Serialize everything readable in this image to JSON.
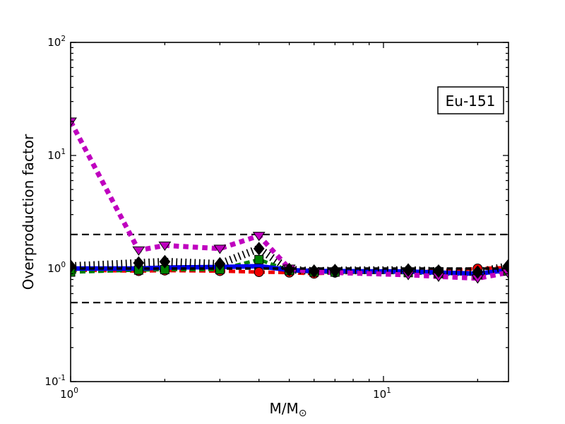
{
  "chart_data": {
    "type": "line",
    "title": "",
    "annotation": "Eu-151",
    "xlabel_base": "M/M",
    "xlabel_sub": "⊙",
    "ylabel": "Overproduction factor",
    "xscale": "log",
    "yscale": "log",
    "xlim": [
      1,
      25.1
    ],
    "ylim": [
      0.1,
      100
    ],
    "grid": false,
    "legend": "none",
    "x_ticks": [
      {
        "value": 1,
        "mantissa": "10",
        "exp": "0"
      },
      {
        "value": 10,
        "mantissa": "10",
        "exp": "1"
      }
    ],
    "x_minor_ticks": [
      2,
      3,
      4,
      5,
      6,
      7,
      8,
      9,
      20
    ],
    "y_ticks": [
      {
        "value": 100,
        "mantissa": "10",
        "exp": "2"
      },
      {
        "value": 10,
        "mantissa": "10",
        "exp": "1"
      },
      {
        "value": 1,
        "mantissa": "10",
        "exp": "0"
      },
      {
        "value": 0.1,
        "mantissa": "10",
        "exp": "-1"
      }
    ],
    "y_minor_ticks": [
      0.2,
      0.3,
      0.4,
      0.5,
      0.6,
      0.7,
      0.8,
      0.9,
      2,
      3,
      4,
      5,
      6,
      7,
      8,
      9,
      20,
      30,
      40,
      50,
      60,
      70,
      80,
      90
    ],
    "reference_lines": [
      {
        "value": 2.0,
        "color": "#000000",
        "dash": "10 6",
        "width": 2.2,
        "above_series": false
      },
      {
        "value": 0.5,
        "color": "#000000",
        "dash": "10 6",
        "width": 2.2,
        "above_series": false
      },
      {
        "value": 1.0,
        "color": "#000000",
        "dash": "8 5",
        "width": 3.4,
        "above_series": true
      }
    ],
    "masses": [
      1,
      1.65,
      2,
      3,
      4,
      5,
      6,
      7,
      12,
      15,
      20,
      25
    ],
    "series": [
      {
        "name": "red-dashed-circles",
        "color": "#ee0000",
        "line_width": 5,
        "dash": "9 5",
        "marker": "circle",
        "marker_size": 13,
        "marker_order": 1,
        "values": [
          0.97,
          0.95,
          0.96,
          0.95,
          0.93,
          0.92,
          0.9,
          0.92,
          0.93,
          0.95,
          1.0,
          1.02
        ]
      },
      {
        "name": "green-dashed-squares",
        "color": "#008000",
        "line_width": 5,
        "dash": "8 5",
        "marker": "square",
        "marker_size": 12,
        "marker_order": 2,
        "values": [
          0.93,
          0.97,
          0.98,
          0.98,
          1.2,
          0.96,
          0.93,
          0.93,
          0.92,
          0.9,
          0.88,
          0.95
        ]
      },
      {
        "name": "blue-solid",
        "color": "#0000ee",
        "line_width": 6.5,
        "dash": "",
        "marker": "none",
        "marker_size": 0,
        "marker_order": 0,
        "values": [
          1.0,
          1.0,
          1.02,
          1.03,
          1.05,
          0.97,
          0.95,
          0.95,
          0.94,
          0.92,
          0.9,
          0.97
        ]
      },
      {
        "name": "black-hatched-diamonds",
        "color": "#000000",
        "line_width": 11,
        "dash": "1.7 4.8",
        "marker": "diamond",
        "marker_size": 16,
        "marker_order": 4,
        "values": [
          1.05,
          1.12,
          1.15,
          1.1,
          1.5,
          0.98,
          0.95,
          0.96,
          0.97,
          0.95,
          0.93,
          1.05
        ]
      },
      {
        "name": "magenta-dashed-triangles",
        "color": "#bf00bf",
        "line_width": 7,
        "dash": "7.5 6",
        "marker": "triangle-down",
        "marker_size": 16,
        "marker_order": 3,
        "values": [
          20.0,
          1.45,
          1.6,
          1.5,
          1.95,
          1.0,
          0.93,
          0.92,
          0.88,
          0.85,
          0.82,
          0.92
        ]
      }
    ]
  }
}
